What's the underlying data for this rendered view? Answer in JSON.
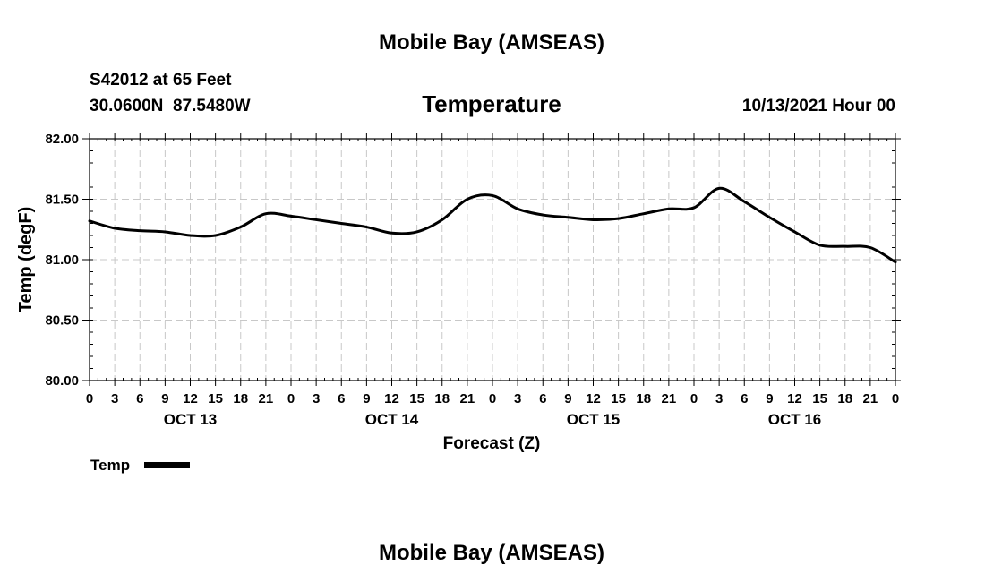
{
  "page": {
    "title": "Mobile Bay (AMSEAS)",
    "station": "S42012 at 65 Feet",
    "coords": "30.0600N  87.5480W",
    "chart_title": "Temperature",
    "run_time": "10/13/2021 Hour 00",
    "footer_title": "Mobile Bay (AMSEAS)"
  },
  "chart_data": {
    "type": "line",
    "title": "Temperature",
    "ylabel": "Temp (degF)",
    "xlabel": "Forecast (Z)",
    "ylim": [
      80.0,
      82.0
    ],
    "yticks": [
      80.0,
      80.5,
      81.0,
      81.5,
      82.0
    ],
    "ytick_labels": [
      "80.00",
      "80.50",
      "81.00",
      "81.50",
      "82.00"
    ],
    "xlim_hours": [
      0,
      96
    ],
    "xtick_hours": [
      0,
      3,
      6,
      9,
      12,
      15,
      18,
      21,
      24,
      27,
      30,
      33,
      36,
      39,
      42,
      45,
      48,
      51,
      54,
      57,
      60,
      63,
      66,
      69,
      72,
      75,
      78,
      81,
      84,
      87,
      90,
      93,
      96
    ],
    "xtick_labels": [
      "0",
      "3",
      "6",
      "9",
      "12",
      "15",
      "18",
      "21",
      "0",
      "3",
      "6",
      "9",
      "12",
      "15",
      "18",
      "21",
      "0",
      "3",
      "6",
      "9",
      "12",
      "15",
      "18",
      "21",
      "0",
      "3",
      "6",
      "9",
      "12",
      "15",
      "18",
      "21",
      "0"
    ],
    "day_labels": [
      {
        "label": "OCT 13",
        "hour": 12
      },
      {
        "label": "OCT 14",
        "hour": 36
      },
      {
        "label": "OCT 15",
        "hour": 60
      },
      {
        "label": "OCT 16",
        "hour": 84
      }
    ],
    "grid": true,
    "legend": "bottom-left",
    "series": [
      {
        "name": "Temp",
        "color": "#000000",
        "x_hours": [
          0,
          3,
          6,
          9,
          12,
          15,
          18,
          21,
          24,
          27,
          30,
          33,
          36,
          39,
          42,
          45,
          48,
          51,
          54,
          57,
          60,
          63,
          66,
          69,
          72,
          75,
          78,
          81,
          84,
          87,
          90,
          93,
          96
        ],
        "values": [
          81.32,
          81.26,
          81.24,
          81.23,
          81.2,
          81.2,
          81.27,
          81.38,
          81.36,
          81.33,
          81.3,
          81.27,
          81.22,
          81.23,
          81.33,
          81.5,
          81.53,
          81.42,
          81.37,
          81.35,
          81.33,
          81.34,
          81.38,
          81.42,
          81.43,
          81.59,
          81.48,
          81.35,
          81.23,
          81.12,
          81.11,
          81.1,
          80.98
        ]
      }
    ]
  }
}
